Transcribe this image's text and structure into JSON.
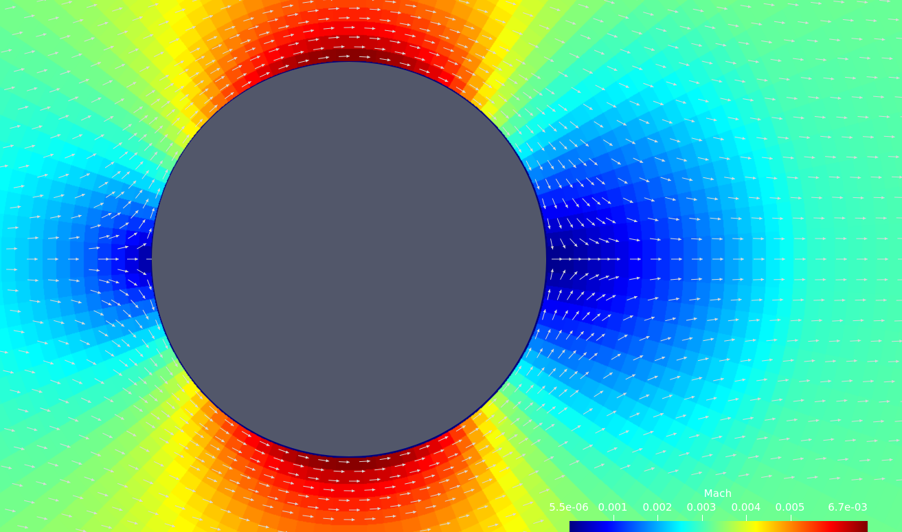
{
  "scene": {
    "title": "",
    "obstacle": "cylinder",
    "background_color": "#52576a",
    "body_color": "#52576a",
    "glyph_color": "#d9d9d9",
    "field": "Mach",
    "flow_direction": "left-to-right"
  },
  "legend": {
    "title": "Mach",
    "min_label": "5.5e-06",
    "max_label": "6.7e-03",
    "tick_labels": [
      "0.001",
      "0.002",
      "0.003",
      "0.004",
      "0.005"
    ],
    "range": [
      5.5e-06,
      0.0067
    ],
    "tick_values": [
      0.001,
      0.002,
      0.003,
      0.004,
      0.005
    ],
    "colormap": [
      "#00007f",
      "#0000ff",
      "#007fff",
      "#00ffff",
      "#7fff7f",
      "#ffff00",
      "#ff7f00",
      "#ff0000",
      "#7f0000"
    ],
    "placement": "bottom-right"
  }
}
